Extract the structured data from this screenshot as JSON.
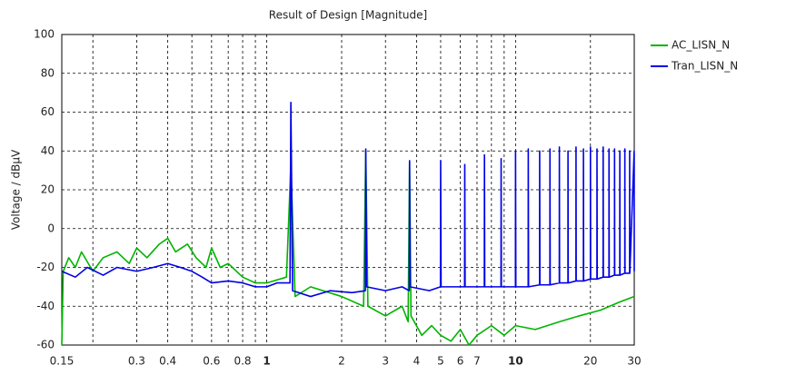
{
  "chart_data": {
    "type": "line",
    "title": "Result of Design [Magnitude]",
    "ylabel": "Voltage / dBµV",
    "xscale": "log",
    "xlim": [
      0.15,
      30
    ],
    "ylim": [
      -60,
      100
    ],
    "xticks": [
      0.15,
      0.3,
      0.4,
      0.6,
      0.8,
      1,
      2,
      3,
      4,
      5,
      6,
      7,
      10,
      20,
      30
    ],
    "xminor_ticks": [
      0.2,
      0.5,
      0.7,
      0.9,
      8,
      9
    ],
    "yticks": [
      -60,
      -40,
      -20,
      0,
      20,
      40,
      60,
      80,
      100
    ],
    "grid": true,
    "legend": "right",
    "series": [
      {
        "name": "AC_LISN_N",
        "color": "#00b400",
        "x": [
          0.15,
          0.152,
          0.16,
          0.17,
          0.18,
          0.2,
          0.22,
          0.25,
          0.28,
          0.3,
          0.33,
          0.37,
          0.4,
          0.43,
          0.48,
          0.52,
          0.57,
          0.6,
          0.65,
          0.7,
          0.8,
          0.9,
          1,
          1.2,
          1.25,
          1.3,
          1.5,
          2,
          2.45,
          2.5,
          2.55,
          3,
          3.5,
          3.7,
          3.75,
          3.8,
          4.2,
          4.6,
          5,
          5.5,
          6,
          6.5,
          7,
          8,
          9,
          10,
          12,
          15,
          18,
          22,
          26,
          30
        ],
        "values": [
          -60,
          -22,
          -15,
          -20,
          -12,
          -22,
          -15,
          -12,
          -18,
          -10,
          -15,
          -8,
          -5,
          -12,
          -8,
          -15,
          -20,
          -10,
          -20,
          -18,
          -25,
          -28,
          -28,
          -25,
          33,
          -35,
          -30,
          -35,
          -40,
          40,
          -40,
          -45,
          -40,
          -48,
          34,
          -45,
          -55,
          -50,
          -55,
          -58,
          -52,
          -60,
          -55,
          -50,
          -55,
          -50,
          -52,
          -48,
          -45,
          -42,
          -38,
          -35
        ]
      },
      {
        "name": "Tran_LISN_N",
        "color": "#0000e6",
        "x": [
          0.15,
          0.17,
          0.19,
          0.22,
          0.25,
          0.3,
          0.35,
          0.4,
          0.45,
          0.5,
          0.55,
          0.6,
          0.7,
          0.8,
          0.9,
          1,
          1.1,
          1.24,
          1.25,
          1.27,
          1.5,
          1.8,
          2.2,
          2.49,
          2.5,
          2.52,
          3,
          3.5,
          3.74,
          3.75,
          3.77,
          4.5,
          4.99,
          5,
          5.02,
          6.24,
          6.25,
          6.27,
          7.49,
          7.5,
          7.52,
          8.74,
          8.75,
          8.77,
          9.99,
          10,
          10.03,
          11.24,
          11.25,
          11.28,
          12.49,
          12.5,
          12.53,
          13.74,
          13.75,
          13.78,
          14.99,
          15,
          15.03,
          16.24,
          16.25,
          16.28,
          17.49,
          17.5,
          17.53,
          18.74,
          18.75,
          18.78,
          19.99,
          20,
          20.04,
          21.24,
          21.25,
          21.29,
          22.49,
          22.5,
          22.54,
          23.74,
          23.75,
          23.79,
          24.99,
          25,
          25.04,
          26.24,
          26.25,
          26.29,
          27.49,
          27.5,
          27.54,
          28.74,
          28.75,
          28.79,
          29.98,
          30
        ],
        "values": [
          -22,
          -25,
          -20,
          -24,
          -20,
          -22,
          -20,
          -18,
          -20,
          -22,
          -25,
          -28,
          -27,
          -28,
          -30,
          -30,
          -28,
          -28,
          65,
          -32,
          -35,
          -32,
          -33,
          -32,
          41,
          -30,
          -32,
          -30,
          -32,
          35,
          -30,
          -32,
          -30,
          35,
          -30,
          -30,
          33,
          -30,
          -30,
          38,
          -30,
          -30,
          36,
          -30,
          -30,
          40,
          -30,
          -30,
          41,
          -30,
          -29,
          40,
          -29,
          -29,
          41,
          -29,
          -28,
          42,
          -28,
          -28,
          40,
          -28,
          -27,
          42,
          -27,
          -27,
          41,
          -27,
          -26,
          42,
          -26,
          -26,
          41,
          -26,
          -25,
          42,
          -25,
          -25,
          41,
          -25,
          -24,
          41,
          -24,
          -24,
          40,
          -24,
          -23,
          41,
          -23,
          -23,
          40,
          -23,
          40,
          -22
        ]
      }
    ]
  }
}
